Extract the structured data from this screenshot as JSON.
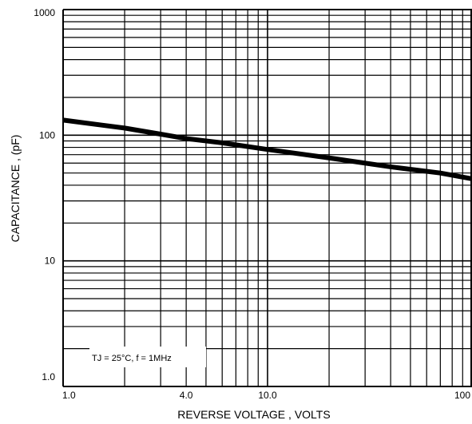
{
  "chart_data": {
    "type": "line",
    "xscale": "log",
    "yscale": "log",
    "xlim": [
      1,
      100
    ],
    "ylim": [
      1,
      1000
    ],
    "grid": true,
    "xlabel": "REVERSE VOLTAGE , VOLTS",
    "ylabel": "CAPACITANCE , (pF)",
    "x_tick_labels": [
      "1.0",
      "4.0",
      "10.0",
      "100"
    ],
    "x_tick_values": [
      1,
      4,
      10,
      100
    ],
    "y_tick_labels": [
      "1.0",
      "10",
      "100",
      "1000"
    ],
    "y_tick_values": [
      1,
      10,
      100,
      1000
    ],
    "annotation": "TJ = 25°C, f = 1MHz",
    "series": [
      {
        "x": [
          1,
          2,
          3,
          4,
          6,
          10,
          20,
          40,
          70,
          100
        ],
        "y": [
          132,
          114,
          102,
          94,
          87,
          77,
          66,
          56,
          50,
          45
        ]
      }
    ]
  },
  "colors": {
    "line": "#000000",
    "grid": "#000000",
    "background": "#ffffff"
  }
}
